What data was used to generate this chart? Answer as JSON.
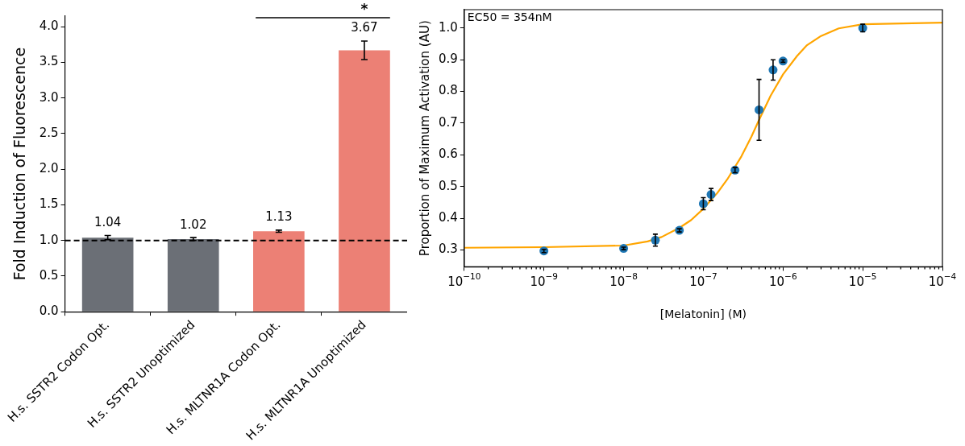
{
  "chart_data": [
    {
      "type": "bar",
      "ylabel": "Fold Induction of Fluorescence",
      "categories": [
        "H.s. SSTR2 Codon Opt.",
        "H.s. SSTR2 Unoptimized",
        "H.s. MLTNR1A Codon Opt.",
        "H.s. MLTNR1A Unoptimized"
      ],
      "values": [
        1.04,
        1.02,
        1.13,
        3.67
      ],
      "colors": [
        "#6b6f76",
        "#6b6f76",
        "#ec8075",
        "#ec8075"
      ],
      "errors": [
        0.03,
        0.02,
        0.015,
        0.13
      ],
      "ylim": [
        0,
        4.15
      ],
      "yticks": [
        {
          "value": 0,
          "label": "0.0"
        },
        {
          "value": 0.5,
          "label": "0.5"
        },
        {
          "value": 1,
          "label": "1.0"
        },
        {
          "value": 1.5,
          "label": "1.5"
        },
        {
          "value": 2,
          "label": "2.0"
        },
        {
          "value": 2.5,
          "label": "2.5"
        },
        {
          "value": 3,
          "label": "3.0"
        },
        {
          "value": 3.5,
          "label": "3.5"
        },
        {
          "value": 4,
          "label": "4.0"
        }
      ],
      "ref_lines": [
        {
          "axis": "y",
          "value": 1,
          "color": "#000000",
          "line_style": "dashed"
        }
      ],
      "annotations": [
        "*"
      ],
      "data_labels": true,
      "grid": false,
      "legend": false
    },
    {
      "type": "scatter",
      "xlabel": "[Melatonin] (M)",
      "ylabel": "Proportion of Maximum Activation (AU)",
      "log": "x",
      "marker": "circle",
      "grid": false,
      "legend": false,
      "xlim": [
        1e-10,
        0.0001
      ],
      "xticks": [
        {
          "value": 1e-10,
          "label": "10$^{−10}$"
        },
        {
          "value": 1e-09,
          "label": "10$^{−9}$"
        },
        {
          "value": 1e-08,
          "label": "10$^{−8}$"
        },
        {
          "value": 1e-07,
          "label": "10$^{−7}$"
        },
        {
          "value": 1e-06,
          "label": "10$^{−6}$"
        },
        {
          "value": 1e-05,
          "label": "10$^{−5}$"
        },
        {
          "value": 0.0001,
          "label": "10$^{−4}$"
        }
      ],
      "ylim": [
        0.247,
        1.058
      ],
      "yticks": [
        {
          "value": 0.3,
          "label": "0.3"
        },
        {
          "value": 0.4,
          "label": "0.4"
        },
        {
          "value": 0.5,
          "label": "0.5"
        },
        {
          "value": 0.6,
          "label": "0.6"
        },
        {
          "value": 0.7,
          "label": "0.7"
        },
        {
          "value": 0.8,
          "label": "0.8"
        },
        {
          "value": 0.9,
          "label": "0.9"
        },
        {
          "value": 1,
          "label": "1.0"
        }
      ],
      "annotations": [
        "EC50 = 354nM"
      ],
      "series": [
        {
          "type": "line",
          "color": "#ffa500",
          "marker": "none",
          "x": [
            1e-10,
            1e-09,
            1e-08,
            2e-08,
            3e-08,
            5e-08,
            7e-08,
            1e-07,
            1.5e-07,
            2e-07,
            3e-07,
            4e-07,
            5e-07,
            7e-07,
            1e-06,
            1.5e-06,
            2e-06,
            3e-06,
            5e-06,
            1e-05,
            0.0001
          ],
          "values": [
            0.307,
            0.309,
            0.314,
            0.327,
            0.341,
            0.37,
            0.394,
            0.43,
            0.48,
            0.523,
            0.595,
            0.657,
            0.71,
            0.787,
            0.854,
            0.912,
            0.946,
            0.975,
            0.999,
            1.012,
            1.017
          ]
        },
        {
          "type": "scatter",
          "color": "#1f77b4",
          "x": [
            1e-09,
            1e-08,
            2.5e-08,
            5e-08,
            1e-07,
            1.25e-07,
            2.5e-07,
            5e-07,
            7.5e-07,
            1e-06,
            1e-05
          ],
          "values": [
            0.297,
            0.305,
            0.331,
            0.362,
            0.446,
            0.475,
            0.552,
            0.742,
            0.868,
            0.896,
            1.0
          ],
          "errors": [
            0.005,
            0.004,
            0.019,
            0.005,
            0.019,
            0.019,
            0.008,
            0.096,
            0.032,
            0.004,
            0.012
          ]
        }
      ]
    }
  ]
}
